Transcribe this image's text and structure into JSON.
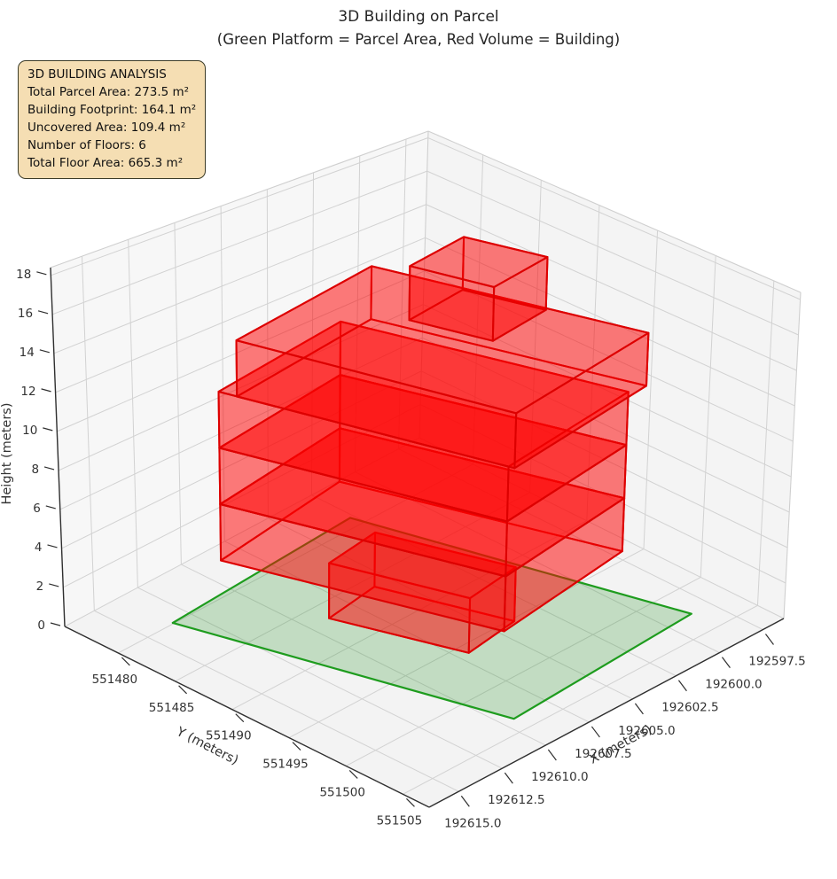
{
  "title": {
    "line1": "3D Building on Parcel",
    "line2": "(Green Platform = Parcel Area, Red Volume = Building)"
  },
  "analysis_box": {
    "heading": "3D BUILDING ANALYSIS",
    "lines": [
      "Total Parcel Area: 273.5 m²",
      "Building Footprint: 164.1 m²",
      "Uncovered Area: 109.4 m²",
      "Number of Floors: 6",
      "Total Floor Area: 665.3 m²"
    ]
  },
  "analysis_values": {
    "total_parcel_area_m2": 273.5,
    "building_footprint_m2": 164.1,
    "uncovered_area_m2": 109.4,
    "number_of_floors": 6,
    "total_floor_area_m2": 665.3
  },
  "colors": {
    "building_face": "rgba(255,0,0,0.30)",
    "building_edge": "#dd0000",
    "parcel_face": "rgba(0,128,0,0.20)",
    "parcel_edge": "#1e9c1e",
    "pane_left": "#f7f7f7",
    "pane_right": "#f4f4f4",
    "pane_floor": "#f3f3f3",
    "grid": "#d2d2d2",
    "pane_edge": "#cfcfcf",
    "spine": "#2f2f2f",
    "tick_text": "#333333",
    "info_bg": "#f5deb3"
  },
  "chart_data": {
    "type": "3d-building",
    "title": "3D Building on Parcel",
    "subtitle": "(Green Platform = Parcel Area, Red Volume = Building)",
    "axes": {
      "x": {
        "label": "X (meters)",
        "range": [
          192596.3,
          192616.7
        ],
        "ticks": [
          {
            "v": 192597.5,
            "label": "192597.5"
          },
          {
            "v": 192600.0,
            "label": "192600.0"
          },
          {
            "v": 192602.5,
            "label": "192602.5"
          },
          {
            "v": 192605.0,
            "label": "192605.0"
          },
          {
            "v": 192607.5,
            "label": "192607.5"
          },
          {
            "v": 192610.0,
            "label": "192610.0"
          },
          {
            "v": 192612.5,
            "label": "192612.5"
          },
          {
            "v": 192615.0,
            "label": "192615.0"
          }
        ]
      },
      "y": {
        "label": "Y (meters)",
        "range": [
          551475.3,
          551507.3
        ],
        "ticks": [
          {
            "v": 551480,
            "label": "551480"
          },
          {
            "v": 551485,
            "label": "551485"
          },
          {
            "v": 551490,
            "label": "551490"
          },
          {
            "v": 551495,
            "label": "551495"
          },
          {
            "v": 551500,
            "label": "551500"
          },
          {
            "v": 551505,
            "label": "551505"
          }
        ]
      },
      "z": {
        "label": "Height (meters)",
        "range": [
          0,
          18.4
        ],
        "ticks": [
          {
            "v": 0,
            "label": "0"
          },
          {
            "v": 2,
            "label": "2"
          },
          {
            "v": 4,
            "label": "4"
          },
          {
            "v": 6,
            "label": "6"
          },
          {
            "v": 8,
            "label": "8"
          },
          {
            "v": 10,
            "label": "10"
          },
          {
            "v": 12,
            "label": "12"
          },
          {
            "v": 14,
            "label": "14"
          },
          {
            "v": 16,
            "label": "16"
          },
          {
            "v": 18,
            "label": "18"
          }
        ]
      }
    },
    "parcel": {
      "z": 0,
      "polygon_xy": [
        [
          192613.5,
          551479.9
        ],
        [
          192609.4,
          551503.6
        ],
        [
          192598.6,
          551502.7
        ],
        [
          192602.7,
          551479.0
        ]
      ]
    },
    "building": {
      "origin_xy": [
        192611.8,
        551481.6
      ],
      "u_dir": [
        -0.205,
        0.979
      ],
      "v_dir": [
        -0.979,
        -0.205
      ],
      "floor_height_m": 3,
      "num_floors": 6,
      "boxes": [
        {
          "name": "floor-1-ground-annex",
          "u0": 5.5,
          "u1": 15.0,
          "v0": 1.8,
          "v1": 4.9,
          "z0": 0,
          "z1": 3
        },
        {
          "name": "floor-2",
          "u0": 0.0,
          "u1": 19.1,
          "v0": 0.0,
          "v1": 8.0,
          "z0": 3,
          "z1": 6
        },
        {
          "name": "floor-3",
          "u0": 0.0,
          "u1": 19.1,
          "v0": 0.0,
          "v1": 8.0,
          "z0": 6,
          "z1": 9
        },
        {
          "name": "floor-4",
          "u0": 0.0,
          "u1": 19.1,
          "v0": 0.0,
          "v1": 8.0,
          "z0": 9,
          "z1": 12
        },
        {
          "name": "floor-5-upper",
          "u0": 1.2,
          "u1": 19.5,
          "v0": 0.0,
          "v1": 8.8,
          "z0": 12,
          "z1": 15
        },
        {
          "name": "floor-6-penthouse",
          "u0": 7.3,
          "u1": 12.8,
          "v0": 5.2,
          "v1": 8.7,
          "z0": 15,
          "z1": 18
        }
      ]
    }
  }
}
